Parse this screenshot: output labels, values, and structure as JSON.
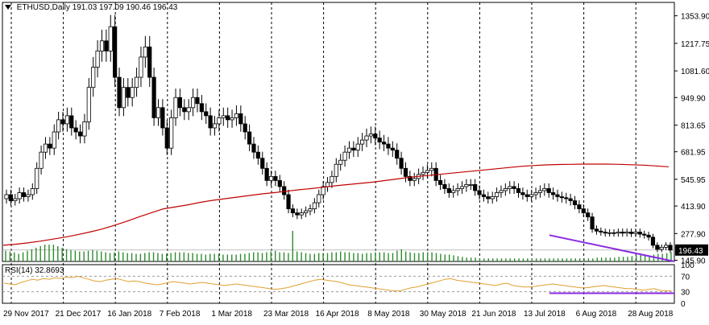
{
  "header": {
    "symbol": "ETHUSD,Daily",
    "ohlc": "191.03 197.09 190.46 196.43"
  },
  "rsi": {
    "label": "RSI(14) 32.8693",
    "value": 32.8693,
    "levels": [
      70,
      30
    ],
    "scale_labels": [
      "100",
      "70",
      "30",
      "0"
    ]
  },
  "colors": {
    "candle": "#000000",
    "ma": "#c00000",
    "volume": "#2e8b2e",
    "rsi_line": "#e0a030",
    "trend": "#8a2be2"
  },
  "chart_data": {
    "type": "candlestick",
    "title": "ETHUSD,Daily",
    "price_ticks": [
      1353.9,
      1217.75,
      1081.6,
      949.9,
      813.65,
      681.95,
      545.95,
      413.9,
      277.9,
      145.9
    ],
    "price_range": [
      140,
      1420
    ],
    "current_price": 196.43,
    "date_labels": [
      "29 Nov 2017",
      "21 Dec 2017",
      "16 Jan 2018",
      "7 Feb 2018",
      "1 Mar 2018",
      "23 Mar 2018",
      "16 Apr 2018",
      "8 May 2018",
      "30 May 2018",
      "21 Jun 2018",
      "13 Jul 2018",
      "6 Aug 2018",
      "28 Aug 2018"
    ],
    "close_series": [
      470,
      440,
      450,
      480,
      460,
      470,
      500,
      600,
      680,
      720,
      700,
      780,
      840,
      820,
      860,
      800,
      780,
      760,
      830,
      1000,
      1100,
      1180,
      1230,
      1180,
      1300,
      1050,
      900,
      1000,
      950,
      1000,
      1050,
      1150,
      1200,
      1050,
      850,
      900,
      800,
      700,
      850,
      950,
      900,
      880,
      900,
      950,
      920,
      880,
      860,
      800,
      820,
      850,
      860,
      840,
      850,
      870,
      820,
      780,
      720,
      680,
      650,
      600,
      540,
      560,
      540,
      510,
      470,
      400,
      380,
      370,
      380,
      390,
      400,
      430,
      470,
      510,
      530,
      560,
      620,
      640,
      680,
      700,
      690,
      720,
      740,
      760,
      770,
      750,
      730,
      720,
      700,
      690,
      650,
      600,
      560,
      540,
      550,
      570,
      580,
      590,
      600,
      540,
      520,
      500,
      480,
      490,
      500,
      510,
      520,
      520,
      490,
      470,
      460,
      450,
      460,
      480,
      490,
      500,
      510,
      500,
      480,
      470,
      460,
      470,
      480,
      490,
      500,
      480,
      470,
      460,
      455,
      450,
      440,
      420,
      400,
      380,
      360,
      300,
      290,
      285,
      280,
      282,
      280,
      285,
      280,
      285,
      278,
      285,
      275,
      270,
      260,
      220,
      200,
      210,
      220,
      196
    ],
    "ma_series": [
      220,
      225,
      232,
      240,
      250,
      260,
      272,
      285,
      300,
      318,
      338,
      360,
      380,
      400,
      410,
      420,
      432,
      442,
      450,
      458,
      466,
      474,
      480,
      487,
      494,
      500,
      507,
      514,
      520,
      526,
      532,
      540,
      548,
      556,
      562,
      568,
      574,
      580,
      586,
      592,
      598,
      604,
      610,
      614,
      617,
      619,
      620,
      621,
      621,
      621,
      620,
      618,
      616,
      612,
      608
    ],
    "volume_series": [
      14,
      13,
      12,
      10,
      12,
      14,
      16,
      18,
      20,
      22,
      22,
      22,
      20,
      18,
      16,
      15,
      14,
      13,
      13,
      14,
      15,
      14,
      13,
      12,
      11,
      12,
      13,
      12,
      11,
      11,
      10,
      10,
      11,
      12,
      12,
      11,
      10,
      10,
      11,
      12,
      12,
      12,
      11,
      11,
      10,
      10,
      9,
      10,
      10,
      10,
      9,
      9,
      9,
      9,
      10,
      10,
      11,
      12,
      12,
      11,
      12,
      13,
      14,
      12,
      12,
      11,
      40,
      13,
      12,
      11,
      10,
      10,
      11,
      11,
      11,
      12,
      12,
      13,
      12,
      12,
      11,
      11,
      10,
      11,
      11,
      12,
      12,
      12,
      11,
      11,
      14,
      16,
      13,
      12,
      11,
      11,
      12,
      12,
      12,
      11,
      10,
      9,
      9,
      8,
      7,
      6,
      5,
      5,
      5,
      4,
      4,
      4,
      4,
      4,
      4,
      4,
      4,
      4,
      4,
      4,
      4,
      4,
      4,
      4,
      4,
      4,
      4,
      4,
      4,
      4,
      4,
      4,
      4,
      4,
      4,
      4,
      5,
      5,
      5,
      5,
      5,
      6,
      6,
      6,
      7,
      8,
      9,
      9,
      8,
      9,
      10,
      10,
      11,
      12
    ],
    "rsi_series": [
      52,
      50,
      48,
      54,
      58,
      62,
      60,
      64,
      62,
      66,
      64,
      68,
      66,
      70,
      66,
      62,
      58,
      56,
      60,
      62,
      64,
      60,
      56,
      58,
      56,
      52,
      50,
      48,
      50,
      54,
      56,
      54,
      52,
      50,
      52,
      54,
      52,
      50,
      48,
      46,
      48,
      50,
      48,
      46,
      44,
      42,
      40,
      38,
      36,
      38,
      40,
      44,
      48,
      52,
      56,
      60,
      62,
      60,
      58,
      56,
      52,
      48,
      46,
      44,
      42,
      40,
      38,
      36,
      34,
      32,
      32,
      36,
      40,
      42,
      46,
      50,
      54,
      58,
      62,
      64,
      60,
      58,
      56,
      54,
      52,
      50,
      48,
      46,
      50,
      52,
      46,
      44,
      42,
      42,
      44,
      46,
      48,
      50,
      48,
      46,
      44,
      42,
      40,
      40,
      42,
      44,
      46,
      44,
      42,
      40,
      38,
      38,
      36,
      34,
      36,
      38,
      34,
      32,
      33
    ],
    "trendlines": [
      {
        "pane": "price",
        "from": [
          0.814,
          270
        ],
        "to": [
          1.0,
          140
        ]
      },
      {
        "pane": "rsi",
        "from": [
          0.814,
          26
        ],
        "to": [
          1.0,
          26
        ]
      }
    ],
    "indicators": [
      "Moving Average (red)",
      "Volumes",
      "RSI(14)"
    ]
  }
}
